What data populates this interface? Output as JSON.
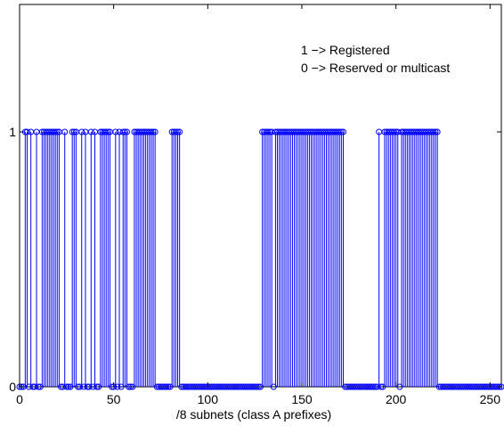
{
  "chart_data": {
    "type": "stem",
    "title": "",
    "xlabel": "/8 subnets (class A prefixes)",
    "ylabel": "",
    "xlim": [
      0,
      256
    ],
    "ylim": [
      0,
      1.5
    ],
    "grid": false,
    "x_ticks": [
      0,
      50,
      100,
      150,
      200,
      250
    ],
    "y_ticks": [
      0,
      1
    ],
    "x_tick_labels": [
      "0",
      "50",
      "100",
      "150",
      "200",
      "250"
    ],
    "y_tick_labels": [
      "0",
      "1"
    ],
    "annotations": [
      "1 −> Registered",
      "0 −> Reserved or multicast"
    ],
    "annotation_position": "top-right",
    "marker": "circle",
    "color": "#0000ff",
    "ones_ranges": [
      [
        3,
        4
      ],
      [
        6,
        6
      ],
      [
        9,
        9
      ],
      [
        12,
        21
      ],
      [
        24,
        24
      ],
      [
        28,
        30
      ],
      [
        33,
        33
      ],
      [
        35,
        35
      ],
      [
        38,
        38
      ],
      [
        40,
        40
      ],
      [
        43,
        48
      ],
      [
        51,
        51
      ],
      [
        53,
        53
      ],
      [
        55,
        57
      ],
      [
        61,
        72
      ],
      [
        81,
        85
      ],
      [
        129,
        134
      ],
      [
        136,
        172
      ],
      [
        191,
        191
      ],
      [
        194,
        201
      ],
      [
        203,
        222
      ]
    ]
  }
}
